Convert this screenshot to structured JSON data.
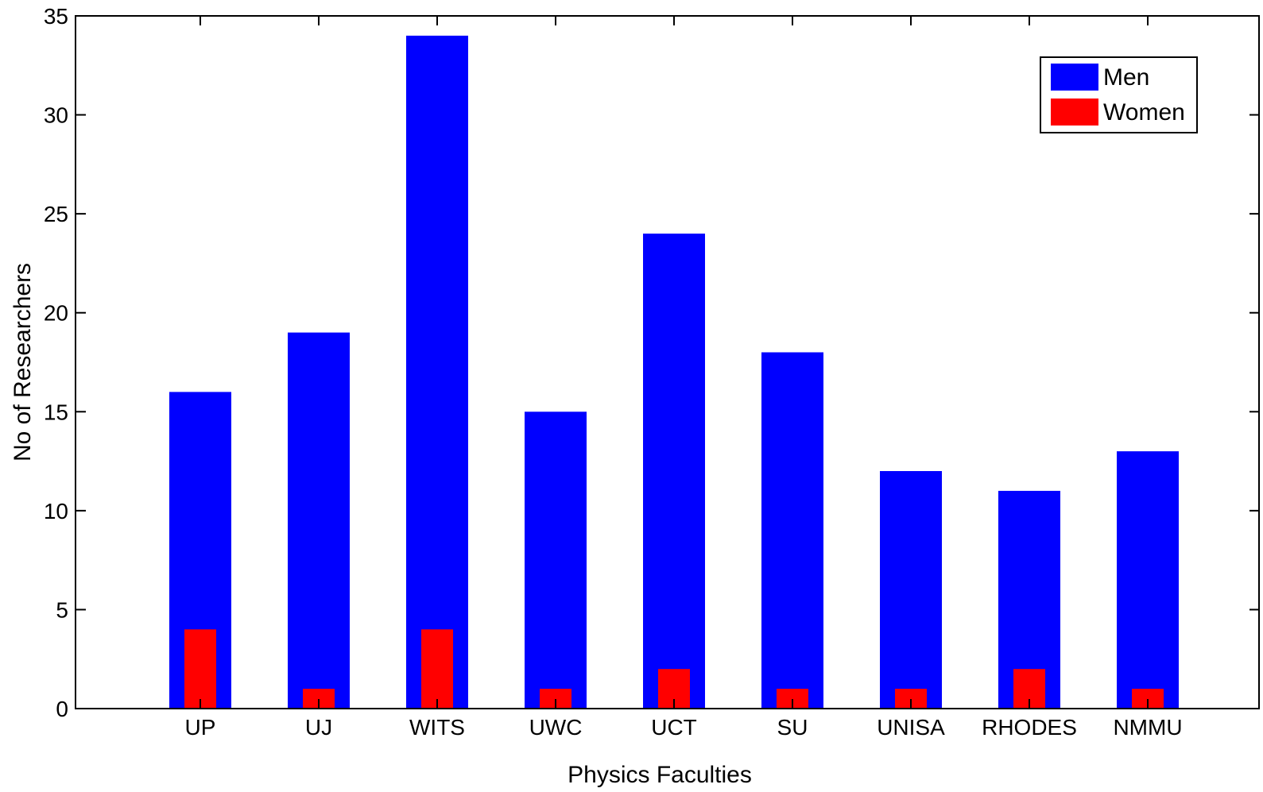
{
  "chart_data": {
    "type": "bar",
    "title": "",
    "xlabel": "Physics Faculties",
    "ylabel": "No of Researchers",
    "categories": [
      "UP",
      "UJ",
      "WITS",
      "UWC",
      "UCT",
      "SU",
      "UNISA",
      "RHODES",
      "NMMU"
    ],
    "series": [
      {
        "name": "Men",
        "color": "#0000ff",
        "values": [
          16,
          19,
          34,
          15,
          24,
          18,
          12,
          11,
          13
        ]
      },
      {
        "name": "Women",
        "color": "#ff0000",
        "values": [
          4,
          1,
          4,
          1,
          2,
          1,
          1,
          2,
          1
        ]
      }
    ],
    "ylim": [
      0,
      35
    ],
    "yticks": [
      0,
      5,
      10,
      15,
      20,
      25,
      30,
      35
    ],
    "grid": false,
    "legend_position": "top-right",
    "bar_style": "overlaid, narrow women bars drawn inside men bars"
  }
}
